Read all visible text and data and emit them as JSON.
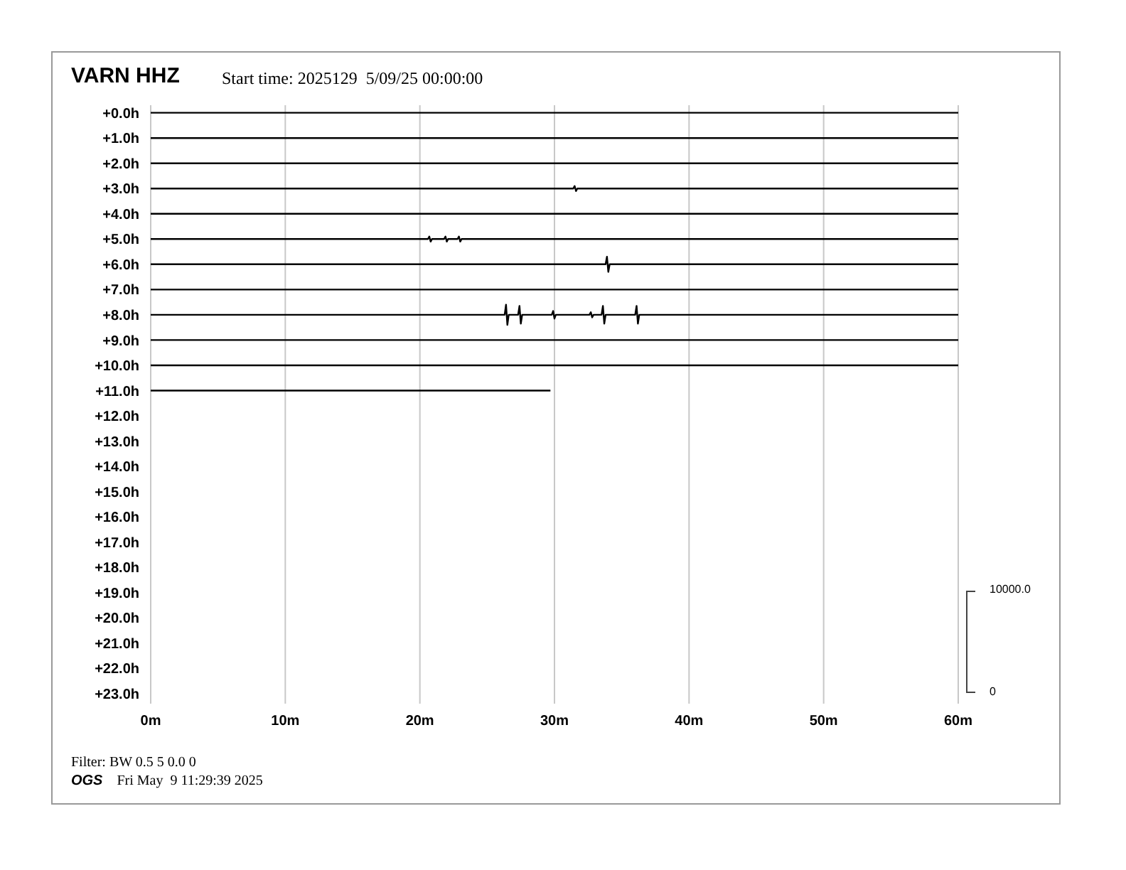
{
  "chart_data": {
    "type": "line",
    "title": "VARN HHZ",
    "subtitle": "Start time: 2025129  5/09/25 00:00:00",
    "annotations": [
      "Filter: BW 0.5 5 0.0 0",
      "OGS",
      "Fri May  9 11:29:39 2025",
      "10000.0",
      "0"
    ],
    "xlim": [
      0,
      60
    ],
    "xticks": [
      {
        "value": 0,
        "label": "0m"
      },
      {
        "value": 10,
        "label": "10m"
      },
      {
        "value": 20,
        "label": "20m"
      },
      {
        "value": 30,
        "label": "30m"
      },
      {
        "value": 40,
        "label": "40m"
      },
      {
        "value": 50,
        "label": "50m"
      },
      {
        "value": 60,
        "label": "60m"
      }
    ],
    "ylim": [
      23.4,
      -0.3
    ],
    "yticks": [
      {
        "value": 0,
        "label": "+0.0h"
      },
      {
        "value": 1,
        "label": "+1.0h"
      },
      {
        "value": 2,
        "label": "+2.0h"
      },
      {
        "value": 3,
        "label": "+3.0h"
      },
      {
        "value": 4,
        "label": "+4.0h"
      },
      {
        "value": 5,
        "label": "+5.0h"
      },
      {
        "value": 6,
        "label": "+6.0h"
      },
      {
        "value": 7,
        "label": "+7.0h"
      },
      {
        "value": 8,
        "label": "+8.0h"
      },
      {
        "value": 9,
        "label": "+9.0h"
      },
      {
        "value": 10,
        "label": "+10.0h"
      },
      {
        "value": 11,
        "label": "+11.0h"
      },
      {
        "value": 12,
        "label": "+12.0h"
      },
      {
        "value": 13,
        "label": "+13.0h"
      },
      {
        "value": 14,
        "label": "+14.0h"
      },
      {
        "value": 15,
        "label": "+15.0h"
      },
      {
        "value": 16,
        "label": "+16.0h"
      },
      {
        "value": 17,
        "label": "+17.0h"
      },
      {
        "value": 18,
        "label": "+18.0h"
      },
      {
        "value": 19,
        "label": "+19.0h"
      },
      {
        "value": 20,
        "label": "+20.0h"
      },
      {
        "value": 21,
        "label": "+21.0h"
      },
      {
        "value": 22,
        "label": "+22.0h"
      },
      {
        "value": 23,
        "label": "+23.0h"
      }
    ],
    "grid": "x",
    "series": [
      {
        "color": "#000000",
        "x": [
          0,
          60
        ],
        "values": [
          0,
          0
        ]
      },
      {
        "color": "#000000",
        "x": [
          0,
          60
        ],
        "values": [
          1,
          1
        ]
      },
      {
        "color": "#000000",
        "x": [
          0,
          60
        ],
        "values": [
          2,
          2
        ]
      },
      {
        "color": "#000000",
        "x": [
          0,
          31.4,
          31.5,
          31.6,
          31.7,
          60
        ],
        "values": [
          3,
          3,
          2.9,
          3.1,
          3,
          3
        ]
      },
      {
        "color": "#000000",
        "x": [
          0,
          60
        ],
        "values": [
          4,
          4
        ]
      },
      {
        "color": "#000000",
        "x": [
          0,
          20.6,
          20.7,
          20.8,
          20.9,
          21.8,
          21.9,
          22.0,
          22.1,
          22.8,
          22.9,
          23.0,
          23.1,
          60
        ],
        "values": [
          5,
          5,
          4.9,
          5.1,
          5,
          5,
          4.9,
          5.1,
          5,
          5,
          4.9,
          5.1,
          5,
          5
        ]
      },
      {
        "color": "#000000",
        "x": [
          0,
          33.8,
          33.9,
          34.0,
          34.1,
          60
        ],
        "values": [
          6,
          6,
          5.7,
          6.3,
          6,
          6
        ]
      },
      {
        "color": "#000000",
        "x": [
          0,
          60
        ],
        "values": [
          7,
          7
        ]
      },
      {
        "color": "#000000",
        "x": [
          0,
          26.3,
          26.4,
          26.5,
          26.6,
          27.3,
          27.4,
          27.5,
          27.6,
          29.8,
          29.9,
          30.0,
          30.1,
          32.6,
          32.7,
          32.8,
          32.9,
          33.5,
          33.6,
          33.7,
          33.8,
          36.0,
          36.1,
          36.2,
          36.3,
          60
        ],
        "values": [
          8,
          8,
          7.6,
          8.4,
          8,
          8,
          7.65,
          8.35,
          8,
          8,
          7.85,
          8.15,
          8,
          8,
          7.9,
          8.1,
          8,
          8,
          7.65,
          8.35,
          8,
          8,
          7.65,
          8.35,
          8,
          8
        ]
      },
      {
        "color": "#000000",
        "x": [
          0,
          60
        ],
        "values": [
          9,
          9
        ]
      },
      {
        "color": "#000000",
        "x": [
          0,
          60
        ],
        "values": [
          10,
          10
        ]
      },
      {
        "color": "#000000",
        "x": [
          0,
          29.7
        ],
        "values": [
          11,
          11
        ]
      }
    ]
  }
}
